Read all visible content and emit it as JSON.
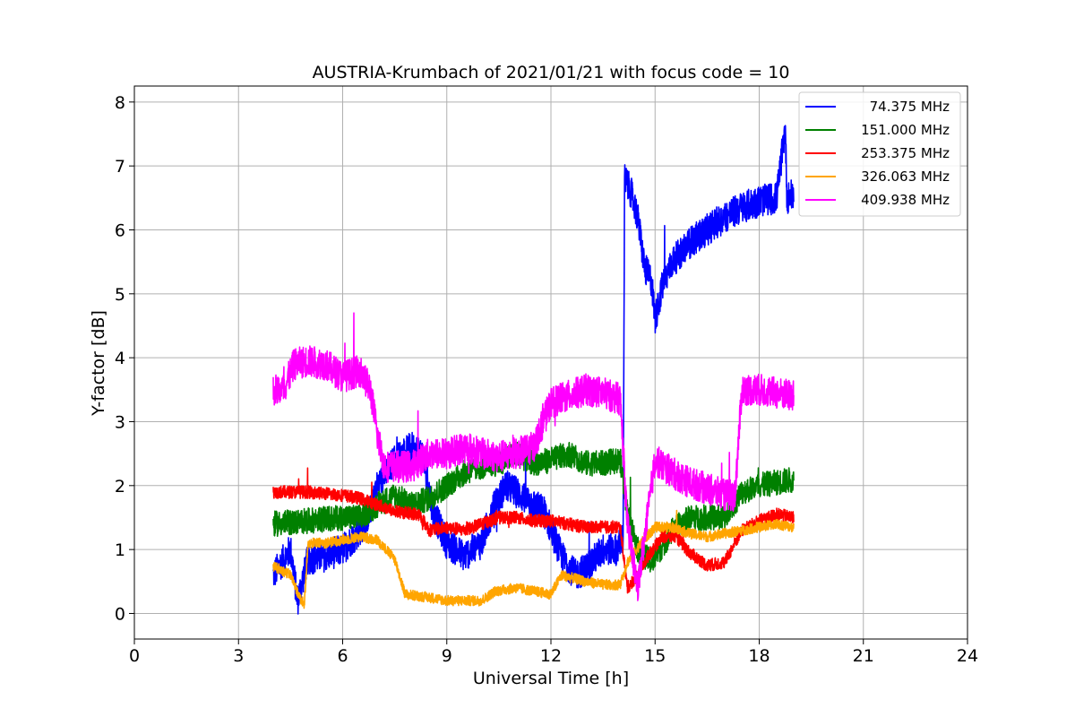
{
  "chart_data": {
    "type": "line",
    "title": "AUSTRIA-Krumbach of 2021/01/21 with focus code = 10",
    "xlabel": "Universal Time [h]",
    "ylabel": "Y-factor [dB]",
    "xlim": [
      0,
      24
    ],
    "ylim": [
      -0.4,
      8.25
    ],
    "xticks": [
      0,
      3,
      6,
      9,
      12,
      15,
      18,
      21,
      24
    ],
    "yticks": [
      0,
      1,
      2,
      3,
      4,
      5,
      6,
      7,
      8
    ],
    "grid": true,
    "legend_position": "top-right",
    "series": [
      {
        "name": "  74.375 MHz",
        "color": "#0000ff",
        "noise": 0.25,
        "points": [
          [
            4.0,
            0.6
          ],
          [
            4.5,
            1.0
          ],
          [
            4.7,
            0.2
          ],
          [
            5.0,
            0.85
          ],
          [
            5.5,
            0.9
          ],
          [
            6.0,
            1.0
          ],
          [
            6.5,
            1.3
          ],
          [
            6.8,
            1.6
          ],
          [
            7.0,
            2.0
          ],
          [
            7.5,
            2.4
          ],
          [
            8.0,
            2.6
          ],
          [
            8.3,
            2.5
          ],
          [
            8.6,
            1.6
          ],
          [
            9.0,
            1.1
          ],
          [
            9.5,
            0.9
          ],
          [
            10.0,
            1.1
          ],
          [
            10.3,
            1.6
          ],
          [
            10.7,
            2.0
          ],
          [
            11.0,
            1.9
          ],
          [
            11.5,
            1.7
          ],
          [
            11.8,
            1.6
          ],
          [
            12.3,
            0.9
          ],
          [
            12.7,
            0.6
          ],
          [
            13.0,
            0.7
          ],
          [
            13.5,
            1.0
          ],
          [
            13.9,
            1.0
          ],
          [
            14.08,
            1.2
          ],
          [
            14.12,
            6.8
          ],
          [
            14.3,
            6.6
          ],
          [
            14.5,
            6.2
          ],
          [
            14.7,
            5.4
          ],
          [
            14.9,
            5.2
          ],
          [
            15.0,
            4.6
          ],
          [
            15.2,
            5.1
          ],
          [
            15.5,
            5.5
          ],
          [
            16.0,
            5.8
          ],
          [
            16.5,
            6.0
          ],
          [
            17.0,
            6.2
          ],
          [
            17.5,
            6.35
          ],
          [
            18.0,
            6.45
          ],
          [
            18.5,
            6.5
          ],
          [
            18.75,
            7.6
          ],
          [
            18.8,
            6.5
          ],
          [
            19.0,
            6.55
          ]
        ]
      },
      {
        "name": "151.000 MHz",
        "color": "#008000",
        "noise": 0.2,
        "points": [
          [
            4.0,
            1.4
          ],
          [
            5.0,
            1.45
          ],
          [
            6.0,
            1.5
          ],
          [
            6.5,
            1.5
          ],
          [
            7.0,
            1.7
          ],
          [
            7.5,
            1.85
          ],
          [
            8.0,
            1.7
          ],
          [
            8.5,
            1.8
          ],
          [
            9.0,
            2.0
          ],
          [
            9.5,
            2.2
          ],
          [
            10.0,
            2.3
          ],
          [
            10.5,
            2.35
          ],
          [
            11.0,
            2.5
          ],
          [
            11.5,
            2.35
          ],
          [
            12.0,
            2.4
          ],
          [
            12.5,
            2.5
          ],
          [
            13.0,
            2.35
          ],
          [
            13.5,
            2.35
          ],
          [
            14.0,
            2.4
          ],
          [
            14.2,
            1.6
          ],
          [
            14.5,
            1.0
          ],
          [
            14.9,
            0.8
          ],
          [
            15.5,
            1.3
          ],
          [
            16.0,
            1.5
          ],
          [
            16.5,
            1.5
          ],
          [
            17.0,
            1.5
          ],
          [
            17.5,
            1.9
          ],
          [
            18.0,
            2.0
          ],
          [
            18.5,
            2.05
          ],
          [
            19.0,
            2.1
          ]
        ]
      },
      {
        "name": "253.375 MHz",
        "color": "#ff0000",
        "noise": 0.1,
        "points": [
          [
            4.0,
            1.9
          ],
          [
            5.0,
            1.9
          ],
          [
            6.0,
            1.85
          ],
          [
            6.5,
            1.8
          ],
          [
            7.0,
            1.7
          ],
          [
            7.5,
            1.6
          ],
          [
            8.2,
            1.55
          ],
          [
            8.5,
            1.3
          ],
          [
            9.0,
            1.35
          ],
          [
            9.5,
            1.3
          ],
          [
            10.0,
            1.4
          ],
          [
            10.5,
            1.5
          ],
          [
            11.0,
            1.5
          ],
          [
            11.5,
            1.45
          ],
          [
            12.0,
            1.45
          ],
          [
            12.5,
            1.4
          ],
          [
            13.0,
            1.35
          ],
          [
            13.5,
            1.35
          ],
          [
            14.0,
            1.35
          ],
          [
            14.2,
            0.4
          ],
          [
            14.5,
            0.6
          ],
          [
            14.8,
            0.9
          ],
          [
            15.2,
            1.2
          ],
          [
            15.6,
            1.2
          ],
          [
            16.0,
            0.95
          ],
          [
            16.5,
            0.75
          ],
          [
            17.0,
            0.8
          ],
          [
            17.5,
            1.3
          ],
          [
            18.0,
            1.45
          ],
          [
            18.5,
            1.55
          ],
          [
            19.0,
            1.5
          ]
        ]
      },
      {
        "name": "326.063 MHz",
        "color": "#ffa500",
        "noise": 0.08,
        "points": [
          [
            4.0,
            0.75
          ],
          [
            4.5,
            0.6
          ],
          [
            4.8,
            0.2
          ],
          [
            4.9,
            0.15
          ],
          [
            5.0,
            1.1
          ],
          [
            5.5,
            1.1
          ],
          [
            6.0,
            1.15
          ],
          [
            6.5,
            1.2
          ],
          [
            7.0,
            1.15
          ],
          [
            7.5,
            0.85
          ],
          [
            7.8,
            0.3
          ],
          [
            8.5,
            0.25
          ],
          [
            9.0,
            0.2
          ],
          [
            9.5,
            0.2
          ],
          [
            10.0,
            0.2
          ],
          [
            10.4,
            0.35
          ],
          [
            11.0,
            0.4
          ],
          [
            11.5,
            0.35
          ],
          [
            12.0,
            0.3
          ],
          [
            12.3,
            0.6
          ],
          [
            13.0,
            0.5
          ],
          [
            13.5,
            0.45
          ],
          [
            14.0,
            0.45
          ],
          [
            14.2,
            0.8
          ],
          [
            14.6,
            1.1
          ],
          [
            15.0,
            1.35
          ],
          [
            15.5,
            1.35
          ],
          [
            16.0,
            1.25
          ],
          [
            16.5,
            1.2
          ],
          [
            17.0,
            1.25
          ],
          [
            17.5,
            1.3
          ],
          [
            18.0,
            1.35
          ],
          [
            18.5,
            1.4
          ],
          [
            19.0,
            1.35
          ]
        ]
      },
      {
        "name": "409.938 MHz",
        "color": "#ff00ff",
        "noise": 0.25,
        "points": [
          [
            4.0,
            3.5
          ],
          [
            4.3,
            3.5
          ],
          [
            4.6,
            3.9
          ],
          [
            5.0,
            3.95
          ],
          [
            5.5,
            3.9
          ],
          [
            6.0,
            3.7
          ],
          [
            6.5,
            3.8
          ],
          [
            6.8,
            3.5
          ],
          [
            7.0,
            2.8
          ],
          [
            7.2,
            2.3
          ],
          [
            7.5,
            2.3
          ],
          [
            8.0,
            2.3
          ],
          [
            8.5,
            2.5
          ],
          [
            9.0,
            2.5
          ],
          [
            9.5,
            2.6
          ],
          [
            10.0,
            2.5
          ],
          [
            10.5,
            2.45
          ],
          [
            11.0,
            2.5
          ],
          [
            11.5,
            2.6
          ],
          [
            12.0,
            3.3
          ],
          [
            12.5,
            3.4
          ],
          [
            13.0,
            3.5
          ],
          [
            13.5,
            3.45
          ],
          [
            14.0,
            3.35
          ],
          [
            14.2,
            1.4
          ],
          [
            14.5,
            0.4
          ],
          [
            14.8,
            1.6
          ],
          [
            15.0,
            2.4
          ],
          [
            15.5,
            2.2
          ],
          [
            16.0,
            2.05
          ],
          [
            16.5,
            1.95
          ],
          [
            17.0,
            1.85
          ],
          [
            17.3,
            1.85
          ],
          [
            17.5,
            3.5
          ],
          [
            18.0,
            3.5
          ],
          [
            18.5,
            3.45
          ],
          [
            19.0,
            3.4
          ]
        ]
      }
    ]
  }
}
